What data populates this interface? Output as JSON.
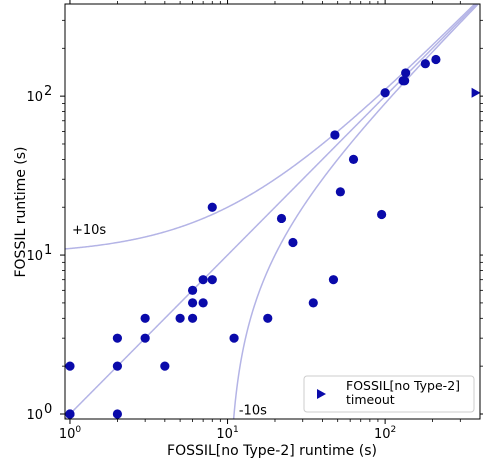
{
  "chart_data": {
    "type": "scatter",
    "title": "",
    "xlabel": "FOSSIL[no Type-2] runtime (s)",
    "ylabel": "FOSSIL runtime (s)",
    "xscale": "log",
    "yscale": "log",
    "xlim": [
      0.93,
      400
    ],
    "ylim": [
      0.93,
      380
    ],
    "grid": false,
    "x_ticks": [
      {
        "value": 1,
        "base": "10",
        "exp": "0"
      },
      {
        "value": 10,
        "base": "10",
        "exp": "1"
      },
      {
        "value": 100,
        "base": "10",
        "exp": "2"
      }
    ],
    "y_ticks": [
      {
        "value": 1,
        "base": "10",
        "exp": "0"
      },
      {
        "value": 10,
        "base": "10",
        "exp": "1"
      },
      {
        "value": 100,
        "base": "10",
        "exp": "2"
      }
    ],
    "colors": {
      "points": "#0a0aaa",
      "reference_lines": "#b4b4e6",
      "axes": "#000000"
    },
    "reference_lines": [
      {
        "kind": "y=x"
      },
      {
        "kind": "y=x+10",
        "label": "+10s"
      },
      {
        "kind": "y=x-10",
        "label": "-10s"
      }
    ],
    "series": [
      {
        "marker": "circle",
        "points": [
          [
            1,
            1
          ],
          [
            1,
            1
          ],
          [
            1,
            2
          ],
          [
            2,
            1
          ],
          [
            2,
            2
          ],
          [
            2,
            3
          ],
          [
            3,
            3
          ],
          [
            3,
            4
          ],
          [
            4,
            2
          ],
          [
            5,
            4
          ],
          [
            6,
            4
          ],
          [
            6,
            5
          ],
          [
            6,
            6
          ],
          [
            7,
            5
          ],
          [
            7,
            7
          ],
          [
            8,
            7
          ],
          [
            8,
            20
          ],
          [
            11,
            3
          ],
          [
            18,
            4
          ],
          [
            22,
            17
          ],
          [
            26,
            12
          ],
          [
            35,
            5
          ],
          [
            47,
            7
          ],
          [
            48,
            57
          ],
          [
            52,
            25
          ],
          [
            63,
            40
          ],
          [
            95,
            18
          ],
          [
            100,
            105
          ],
          [
            130,
            125
          ],
          [
            133,
            125
          ],
          [
            135,
            140
          ],
          [
            180,
            160
          ],
          [
            210,
            170
          ]
        ]
      },
      {
        "name": "FOSSIL[no Type-2]\ntimeout",
        "marker": "triangle-right",
        "points": [
          [
            375,
            105
          ]
        ]
      }
    ],
    "legend": {
      "placement": "lower-right",
      "entries": [
        {
          "line1": "FOSSIL[no Type-2]",
          "line2": "timeout",
          "marker": "triangle-right"
        }
      ]
    }
  }
}
